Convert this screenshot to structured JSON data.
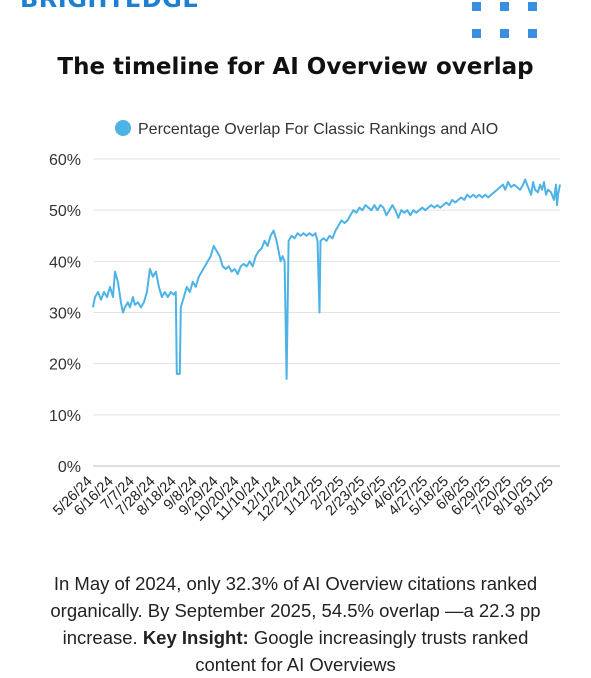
{
  "header": {
    "logo_text": "BRIGHTEDGE",
    "logo_icon": "dot-grid-icon",
    "brand_color": "#1f7fd1"
  },
  "caption": {
    "part1": "In May of 2024, only 32.3% of AI Overview citations ranked organically. By September 2025, 54.5% overlap —a 22.3 pp increase. ",
    "insight_label": "Key Insight:",
    "part2": " Google increasingly trusts ranked content for AI Overviews"
  },
  "chart_data": {
    "type": "line",
    "title": "The timeline for AI Overview overlap",
    "legend_position": "top",
    "grid": "horizontal",
    "ylim": [
      0,
      60
    ],
    "y_ticks": [
      0,
      10,
      20,
      30,
      40,
      50,
      60
    ],
    "y_tick_labels": [
      "0%",
      "10%",
      "20%",
      "30%",
      "40%",
      "50%",
      "60%"
    ],
    "x_range": [
      "2024-05-26",
      "2025-09-06"
    ],
    "x_tick_labels": [
      "5/26/24",
      "6/16/24",
      "7/7/24",
      "7/28/24",
      "8/18/24",
      "9/8/24",
      "9/29/24",
      "10/20/24",
      "11/10/24",
      "12/1/24",
      "12/22/24",
      "1/12/25",
      "2/2/25",
      "2/23/25",
      "3/16/25",
      "4/6/25",
      "4/27/25",
      "5/18/25",
      "6/8/25",
      "6/29/25",
      "7/20/25",
      "8/10/25",
      "8/31/25"
    ],
    "series": [
      {
        "name": "Percentage Overlap For Classic Rankings and AIO",
        "color": "#4db3e6",
        "points": [
          [
            "2024-05-26",
            31
          ],
          [
            "2024-05-28",
            33
          ],
          [
            "2024-05-31",
            34
          ],
          [
            "2024-06-03",
            32.5
          ],
          [
            "2024-06-06",
            34
          ],
          [
            "2024-06-09",
            33
          ],
          [
            "2024-06-12",
            35
          ],
          [
            "2024-06-15",
            33
          ],
          [
            "2024-06-17",
            38
          ],
          [
            "2024-06-20",
            36
          ],
          [
            "2024-06-23",
            32
          ],
          [
            "2024-06-25",
            30
          ],
          [
            "2024-06-27",
            31
          ],
          [
            "2024-06-30",
            32
          ],
          [
            "2024-07-02",
            31
          ],
          [
            "2024-07-05",
            33
          ],
          [
            "2024-07-07",
            31.5
          ],
          [
            "2024-07-10",
            32
          ],
          [
            "2024-07-13",
            31
          ],
          [
            "2024-07-16",
            32
          ],
          [
            "2024-07-19",
            34
          ],
          [
            "2024-07-22",
            38.5
          ],
          [
            "2024-07-25",
            37
          ],
          [
            "2024-07-28",
            38
          ],
          [
            "2024-07-31",
            35
          ],
          [
            "2024-08-03",
            33
          ],
          [
            "2024-08-06",
            34
          ],
          [
            "2024-08-09",
            33
          ],
          [
            "2024-08-12",
            34
          ],
          [
            "2024-08-15",
            33.5
          ],
          [
            "2024-08-17",
            34
          ],
          [
            "2024-08-18",
            18
          ],
          [
            "2024-08-21",
            18
          ],
          [
            "2024-08-22",
            31
          ],
          [
            "2024-08-25",
            33
          ],
          [
            "2024-08-28",
            35
          ],
          [
            "2024-08-31",
            34
          ],
          [
            "2024-09-03",
            36
          ],
          [
            "2024-09-06",
            35
          ],
          [
            "2024-09-09",
            37
          ],
          [
            "2024-09-12",
            38
          ],
          [
            "2024-09-15",
            39
          ],
          [
            "2024-09-18",
            40
          ],
          [
            "2024-09-21",
            41
          ],
          [
            "2024-09-24",
            43
          ],
          [
            "2024-09-27",
            42
          ],
          [
            "2024-09-30",
            41
          ],
          [
            "2024-10-03",
            39
          ],
          [
            "2024-10-06",
            38.5
          ],
          [
            "2024-10-09",
            39
          ],
          [
            "2024-10-12",
            38
          ],
          [
            "2024-10-15",
            38.5
          ],
          [
            "2024-10-18",
            37.5
          ],
          [
            "2024-10-21",
            39
          ],
          [
            "2024-10-24",
            39.5
          ],
          [
            "2024-10-27",
            39
          ],
          [
            "2024-10-30",
            40
          ],
          [
            "2024-11-02",
            39
          ],
          [
            "2024-11-05",
            41
          ],
          [
            "2024-11-08",
            42
          ],
          [
            "2024-11-11",
            42.5
          ],
          [
            "2024-11-14",
            44
          ],
          [
            "2024-11-17",
            43
          ],
          [
            "2024-11-20",
            45
          ],
          [
            "2024-11-23",
            46
          ],
          [
            "2024-11-26",
            44
          ],
          [
            "2024-11-28",
            42
          ],
          [
            "2024-11-30",
            40
          ],
          [
            "2024-12-02",
            41
          ],
          [
            "2024-12-04",
            40
          ],
          [
            "2024-12-06",
            17
          ],
          [
            "2024-12-08",
            44
          ],
          [
            "2024-12-11",
            45
          ],
          [
            "2024-12-14",
            44.5
          ],
          [
            "2024-12-17",
            45.5
          ],
          [
            "2024-12-20",
            45
          ],
          [
            "2024-12-23",
            45.5
          ],
          [
            "2024-12-26",
            45
          ],
          [
            "2024-12-29",
            45.5
          ],
          [
            "2025-01-01",
            45
          ],
          [
            "2025-01-04",
            45.5
          ],
          [
            "2025-01-06",
            44
          ],
          [
            "2025-01-08",
            30
          ],
          [
            "2025-01-09",
            44
          ],
          [
            "2025-01-12",
            44.5
          ],
          [
            "2025-01-15",
            44
          ],
          [
            "2025-01-18",
            45
          ],
          [
            "2025-01-21",
            44.5
          ],
          [
            "2025-01-24",
            46
          ],
          [
            "2025-01-27",
            47
          ],
          [
            "2025-01-30",
            48
          ],
          [
            "2025-02-02",
            47.5
          ],
          [
            "2025-02-05",
            48
          ],
          [
            "2025-02-08",
            49
          ],
          [
            "2025-02-11",
            50
          ],
          [
            "2025-02-14",
            49.5
          ],
          [
            "2025-02-17",
            50.5
          ],
          [
            "2025-02-20",
            50
          ],
          [
            "2025-02-23",
            51
          ],
          [
            "2025-02-26",
            50.5
          ],
          [
            "2025-03-01",
            50
          ],
          [
            "2025-03-04",
            51
          ],
          [
            "2025-03-07",
            50
          ],
          [
            "2025-03-10",
            51
          ],
          [
            "2025-03-13",
            50.5
          ],
          [
            "2025-03-16",
            49
          ],
          [
            "2025-03-19",
            50
          ],
          [
            "2025-03-22",
            51
          ],
          [
            "2025-03-25",
            50
          ],
          [
            "2025-03-28",
            48.5
          ],
          [
            "2025-03-31",
            50
          ],
          [
            "2025-04-03",
            49.5
          ],
          [
            "2025-04-06",
            50
          ],
          [
            "2025-04-09",
            49
          ],
          [
            "2025-04-12",
            50
          ],
          [
            "2025-04-15",
            49.5
          ],
          [
            "2025-04-18",
            50
          ],
          [
            "2025-04-21",
            50.5
          ],
          [
            "2025-04-24",
            50
          ],
          [
            "2025-04-27",
            50.5
          ],
          [
            "2025-04-30",
            51
          ],
          [
            "2025-05-03",
            50.5
          ],
          [
            "2025-05-06",
            51
          ],
          [
            "2025-05-09",
            50.5
          ],
          [
            "2025-05-12",
            51
          ],
          [
            "2025-05-15",
            51.5
          ],
          [
            "2025-05-18",
            51
          ],
          [
            "2025-05-21",
            52
          ],
          [
            "2025-05-24",
            51.5
          ],
          [
            "2025-05-27",
            52
          ],
          [
            "2025-05-30",
            52.5
          ],
          [
            "2025-06-02",
            52
          ],
          [
            "2025-06-05",
            53
          ],
          [
            "2025-06-08",
            52.5
          ],
          [
            "2025-06-11",
            53
          ],
          [
            "2025-06-14",
            52.5
          ],
          [
            "2025-06-17",
            53
          ],
          [
            "2025-06-20",
            52.5
          ],
          [
            "2025-06-23",
            53
          ],
          [
            "2025-06-26",
            52.5
          ],
          [
            "2025-06-29",
            53
          ],
          [
            "2025-07-02",
            53.5
          ],
          [
            "2025-07-05",
            54
          ],
          [
            "2025-07-08",
            54.5
          ],
          [
            "2025-07-11",
            55
          ],
          [
            "2025-07-13",
            54
          ],
          [
            "2025-07-16",
            55.5
          ],
          [
            "2025-07-19",
            54.5
          ],
          [
            "2025-07-22",
            55
          ],
          [
            "2025-07-25",
            54.5
          ],
          [
            "2025-07-28",
            54
          ],
          [
            "2025-07-31",
            55
          ],
          [
            "2025-08-02",
            56
          ],
          [
            "2025-08-04",
            55
          ],
          [
            "2025-08-06",
            54
          ],
          [
            "2025-08-08",
            53
          ],
          [
            "2025-08-10",
            55.5
          ],
          [
            "2025-08-12",
            54
          ],
          [
            "2025-08-15",
            53.5
          ],
          [
            "2025-08-17",
            55
          ],
          [
            "2025-08-19",
            54
          ],
          [
            "2025-08-21",
            55.5
          ],
          [
            "2025-08-23",
            53
          ],
          [
            "2025-08-25",
            54
          ],
          [
            "2025-08-28",
            53.5
          ],
          [
            "2025-08-31",
            52
          ],
          [
            "2025-09-02",
            55
          ],
          [
            "2025-09-03",
            51
          ],
          [
            "2025-09-04",
            53
          ],
          [
            "2025-09-06",
            55
          ]
        ]
      }
    ]
  }
}
